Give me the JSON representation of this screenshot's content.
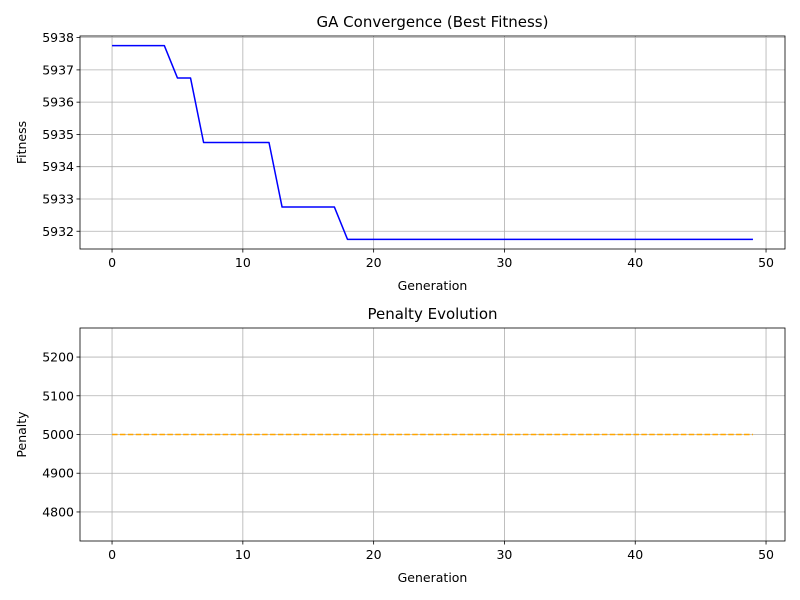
{
  "chart_data": [
    {
      "type": "line",
      "title": "GA Convergence (Best Fitness)",
      "xlabel": "Generation",
      "ylabel": "Fitness",
      "xlim": [
        -2.45,
        51.45
      ],
      "ylim": [
        5931.45,
        5938.05
      ],
      "xticks": [
        0,
        10,
        20,
        30,
        40,
        50
      ],
      "yticks": [
        5932,
        5933,
        5934,
        5935,
        5936,
        5937,
        5938
      ],
      "grid": true,
      "series": [
        {
          "color": "#0000ff",
          "line_style": "solid",
          "x": [
            0,
            1,
            2,
            3,
            4,
            5,
            6,
            7,
            8,
            9,
            10,
            11,
            12,
            13,
            14,
            15,
            16,
            17,
            18,
            19,
            20,
            21,
            22,
            23,
            24,
            25,
            26,
            27,
            28,
            29,
            30,
            31,
            32,
            33,
            34,
            35,
            36,
            37,
            38,
            39,
            40,
            41,
            42,
            43,
            44,
            45,
            46,
            47,
            48,
            49
          ],
          "y": [
            5937.75,
            5937.75,
            5937.75,
            5937.75,
            5937.75,
            5936.75,
            5936.75,
            5934.75,
            5934.75,
            5934.75,
            5934.75,
            5934.75,
            5934.75,
            5932.75,
            5932.75,
            5932.75,
            5932.75,
            5932.75,
            5931.75,
            5931.75,
            5931.75,
            5931.75,
            5931.75,
            5931.75,
            5931.75,
            5931.75,
            5931.75,
            5931.75,
            5931.75,
            5931.75,
            5931.75,
            5931.75,
            5931.75,
            5931.75,
            5931.75,
            5931.75,
            5931.75,
            5931.75,
            5931.75,
            5931.75,
            5931.75,
            5931.75,
            5931.75,
            5931.75,
            5931.75,
            5931.75,
            5931.75,
            5931.75,
            5931.75,
            5931.75
          ]
        }
      ]
    },
    {
      "type": "line",
      "title": "Penalty Evolution",
      "xlabel": "Generation",
      "ylabel": "Penalty",
      "xlim": [
        -2.45,
        51.45
      ],
      "ylim": [
        4725,
        5275
      ],
      "xticks": [
        0,
        10,
        20,
        30,
        40,
        50
      ],
      "yticks": [
        4800,
        4900,
        5000,
        5100,
        5200
      ],
      "grid": true,
      "series": [
        {
          "color": "#ffa500",
          "line_style": "dashed",
          "x": [
            0,
            1,
            2,
            3,
            4,
            5,
            6,
            7,
            8,
            9,
            10,
            11,
            12,
            13,
            14,
            15,
            16,
            17,
            18,
            19,
            20,
            21,
            22,
            23,
            24,
            25,
            26,
            27,
            28,
            29,
            30,
            31,
            32,
            33,
            34,
            35,
            36,
            37,
            38,
            39,
            40,
            41,
            42,
            43,
            44,
            45,
            46,
            47,
            48,
            49
          ],
          "y": [
            5000,
            5000,
            5000,
            5000,
            5000,
            5000,
            5000,
            5000,
            5000,
            5000,
            5000,
            5000,
            5000,
            5000,
            5000,
            5000,
            5000,
            5000,
            5000,
            5000,
            5000,
            5000,
            5000,
            5000,
            5000,
            5000,
            5000,
            5000,
            5000,
            5000,
            5000,
            5000,
            5000,
            5000,
            5000,
            5000,
            5000,
            5000,
            5000,
            5000,
            5000,
            5000,
            5000,
            5000,
            5000,
            5000,
            5000,
            5000,
            5000,
            5000
          ]
        }
      ]
    }
  ]
}
